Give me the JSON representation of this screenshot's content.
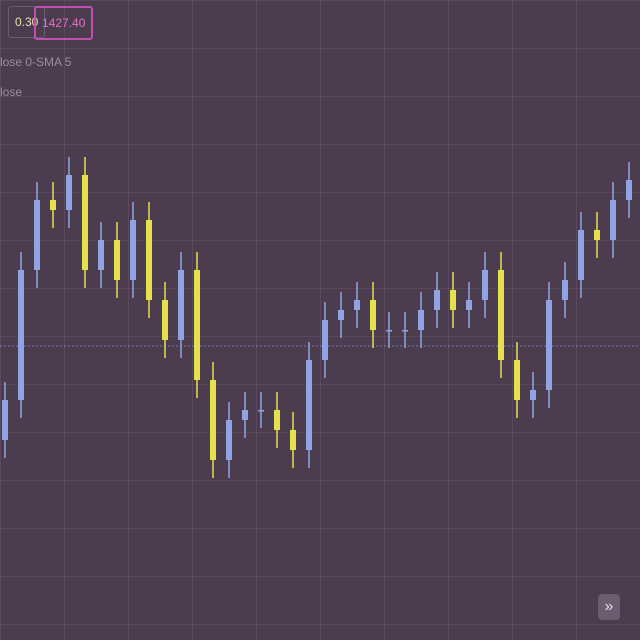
{
  "toolbar": {
    "value_box": "0.30",
    "price_box": "1427.40"
  },
  "legend": [
    "lose 0-SMA 5",
    "lose"
  ],
  "button": "»",
  "chart_data": {
    "type": "candlestick",
    "open": [
      200,
      240,
      370,
      440,
      430,
      465,
      370,
      400,
      360,
      420,
      340,
      300,
      370,
      260,
      180,
      220,
      230,
      230,
      210,
      190,
      280,
      320,
      330,
      340,
      310,
      310,
      310,
      330,
      350,
      330,
      340,
      370,
      280,
      240,
      250,
      340,
      360,
      410,
      400,
      440
    ],
    "high": [
      258,
      388,
      458,
      458,
      483,
      483,
      418,
      418,
      438,
      438,
      358,
      388,
      388,
      278,
      238,
      248,
      248,
      248,
      228,
      298,
      338,
      348,
      358,
      358,
      328,
      328,
      348,
      368,
      368,
      358,
      388,
      388,
      298,
      268,
      358,
      378,
      428,
      428,
      458,
      478
    ],
    "low": [
      182,
      222,
      352,
      412,
      412,
      352,
      352,
      342,
      342,
      322,
      282,
      282,
      242,
      162,
      162,
      202,
      212,
      192,
      172,
      172,
      262,
      302,
      312,
      292,
      292,
      292,
      292,
      312,
      312,
      312,
      322,
      262,
      222,
      222,
      232,
      322,
      342,
      382,
      382,
      422
    ],
    "close": [
      240,
      370,
      440,
      430,
      465,
      370,
      400,
      360,
      420,
      340,
      300,
      370,
      260,
      180,
      220,
      230,
      230,
      210,
      190,
      280,
      320,
      330,
      340,
      310,
      310,
      310,
      330,
      350,
      330,
      340,
      370,
      280,
      240,
      250,
      340,
      360,
      410,
      400,
      440,
      460
    ],
    "up_color": "#8ea4e6",
    "down_color": "#e6e04c",
    "ylim": [
      0,
      640
    ]
  }
}
